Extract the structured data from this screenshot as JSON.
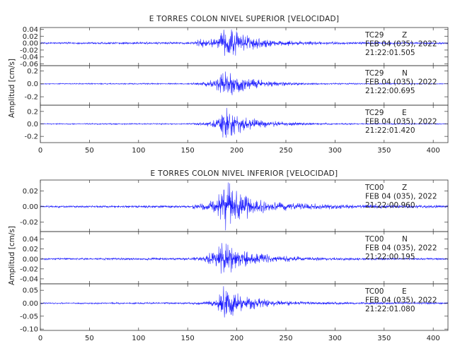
{
  "chart_data": [
    {
      "type": "line",
      "title": "E TORRES COLON NIVEL SUPERIOR [VELOCIDAD]",
      "ylabel": "Amplitud [cm/s]",
      "xlim": [
        0,
        415
      ],
      "x_ticks": [
        "0",
        "50",
        "100",
        "150",
        "200",
        "250",
        "300",
        "350",
        "400"
      ],
      "colors": {
        "trace": "#1a1aff",
        "axis": "#333333"
      },
      "series": [
        {
          "name": "TC29 Z",
          "station": "TC29",
          "component": "Z",
          "date": "FEB 04 (035), 2022",
          "time": "21:22:01.505",
          "ylim": [
            -0.065,
            0.045
          ],
          "y_ticks": [
            "0.04",
            "0.02",
            "0.00",
            "-0.02",
            "-0.04",
            "-0.06"
          ],
          "y_tick_values": [
            0.04,
            0.02,
            0.0,
            -0.02,
            -0.04,
            -0.06
          ],
          "envelope": [
            [
              0,
              0.003
            ],
            [
              155,
              0.004
            ],
            [
              160,
              0.012
            ],
            [
              175,
              0.014
            ],
            [
              182,
              0.02
            ],
            [
              188,
              0.05
            ],
            [
              195,
              0.045
            ],
            [
              205,
              0.03
            ],
            [
              220,
              0.018
            ],
            [
              240,
              0.01
            ],
            [
              270,
              0.006
            ],
            [
              320,
              0.004
            ],
            [
              415,
              0.003
            ]
          ]
        },
        {
          "name": "TC29 N",
          "station": "TC29",
          "component": "N",
          "date": "FEB 04 (035), 2022",
          "time": "21:22:00.695",
          "ylim": [
            -0.33,
            0.28
          ],
          "y_ticks": [
            "0.2",
            "0.0",
            "-0.2"
          ],
          "y_tick_values": [
            0.2,
            0.0,
            -0.2
          ],
          "envelope": [
            [
              0,
              0.01
            ],
            [
              150,
              0.012
            ],
            [
              165,
              0.03
            ],
            [
              178,
              0.08
            ],
            [
              185,
              0.25
            ],
            [
              192,
              0.22
            ],
            [
              200,
              0.15
            ],
            [
              215,
              0.08
            ],
            [
              240,
              0.04
            ],
            [
              270,
              0.02
            ],
            [
              300,
              0.012
            ],
            [
              415,
              0.008
            ]
          ]
        },
        {
          "name": "TC29 E",
          "station": "TC29",
          "component": "E",
          "date": "FEB 04 (035), 2022",
          "time": "21:22:01.420",
          "ylim": [
            -0.3,
            0.3
          ],
          "y_ticks": [
            "0.2",
            "0.0",
            "-0.2"
          ],
          "y_tick_values": [
            0.2,
            0.0,
            -0.2
          ],
          "envelope": [
            [
              0,
              0.01
            ],
            [
              150,
              0.012
            ],
            [
              165,
              0.03
            ],
            [
              180,
              0.09
            ],
            [
              186,
              0.28
            ],
            [
              193,
              0.25
            ],
            [
              202,
              0.16
            ],
            [
              220,
              0.08
            ],
            [
              245,
              0.04
            ],
            [
              280,
              0.02
            ],
            [
              320,
              0.012
            ],
            [
              415,
              0.008
            ]
          ]
        }
      ]
    },
    {
      "type": "line",
      "title": "E TORRES COLON NIVEL INFERIOR [VELOCIDAD]",
      "ylabel": "Amplitud [cm/s]",
      "xlim": [
        0,
        415
      ],
      "x_ticks": [
        "0",
        "50",
        "100",
        "150",
        "200",
        "250",
        "300",
        "350",
        "400"
      ],
      "colors": {
        "trace": "#1a1aff",
        "axis": "#333333"
      },
      "series": [
        {
          "name": "TC00 Z",
          "station": "TC00",
          "component": "Z",
          "date": "FEB 04 (035), 2022",
          "time": "21:22:00.960",
          "ylim": [
            -0.032,
            0.034
          ],
          "y_ticks": [
            "0.02",
            "0.00",
            "-0.02"
          ],
          "y_tick_values": [
            0.02,
            0.0,
            -0.02
          ],
          "envelope": [
            [
              0,
              0.0015
            ],
            [
              150,
              0.002
            ],
            [
              165,
              0.005
            ],
            [
              180,
              0.012
            ],
            [
              188,
              0.033
            ],
            [
              195,
              0.03
            ],
            [
              205,
              0.02
            ],
            [
              220,
              0.01
            ],
            [
              245,
              0.006
            ],
            [
              280,
              0.004
            ],
            [
              320,
              0.003
            ],
            [
              415,
              0.002
            ]
          ]
        },
        {
          "name": "TC00 N",
          "station": "TC00",
          "component": "N",
          "date": "FEB 04 (035), 2022",
          "time": "21:22:00.195",
          "ylim": [
            -0.05,
            0.055
          ],
          "y_ticks": [
            "0.04",
            "0.02",
            "0.00",
            "-0.02",
            "-0.04"
          ],
          "y_tick_values": [
            0.04,
            0.02,
            0.0,
            -0.02,
            -0.04
          ],
          "envelope": [
            [
              0,
              0.002
            ],
            [
              150,
              0.003
            ],
            [
              165,
              0.006
            ],
            [
              180,
              0.02
            ],
            [
              186,
              0.05
            ],
            [
              193,
              0.035
            ],
            [
              203,
              0.022
            ],
            [
              220,
              0.012
            ],
            [
              245,
              0.007
            ],
            [
              280,
              0.004
            ],
            [
              320,
              0.003
            ],
            [
              415,
              0.002
            ]
          ]
        },
        {
          "name": "TC00 E",
          "station": "TC00",
          "component": "E",
          "date": "FEB 04 (035), 2022",
          "time": "21:22:01.080",
          "ylim": [
            -0.105,
            0.075
          ],
          "y_ticks": [
            "0.05",
            "0.00",
            "-0.05",
            "-0.10"
          ],
          "y_tick_values": [
            0.05,
            0.0,
            -0.05,
            -0.1
          ],
          "envelope": [
            [
              0,
              0.003
            ],
            [
              150,
              0.004
            ],
            [
              170,
              0.008
            ],
            [
              180,
              0.02
            ],
            [
              186,
              0.1
            ],
            [
              192,
              0.06
            ],
            [
              200,
              0.04
            ],
            [
              215,
              0.025
            ],
            [
              240,
              0.012
            ],
            [
              270,
              0.007
            ],
            [
              320,
              0.005
            ],
            [
              415,
              0.004
            ]
          ]
        }
      ]
    }
  ]
}
